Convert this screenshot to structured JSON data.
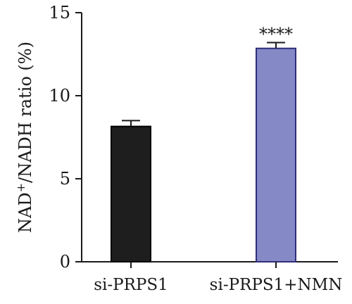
{
  "chart_data": {
    "type": "bar",
    "categories": [
      "si-PRPS1",
      "si-PRPS1+NMN"
    ],
    "values": [
      8.15,
      12.85
    ],
    "errors": [
      0.35,
      0.35
    ],
    "colors": [
      "#1e1e1e",
      "#8589c6"
    ],
    "edge_colors": [
      "#000000",
      "#2e2e7a"
    ],
    "ylabel_prefix": "NAD",
    "ylabel_sup": "+",
    "ylabel_suffix": "/NADH ratio (%)",
    "ylim": [
      0,
      15
    ],
    "yticks": [
      0,
      5,
      10,
      15
    ],
    "annotations": [
      "",
      "****"
    ],
    "grid": false,
    "legend": "none"
  }
}
